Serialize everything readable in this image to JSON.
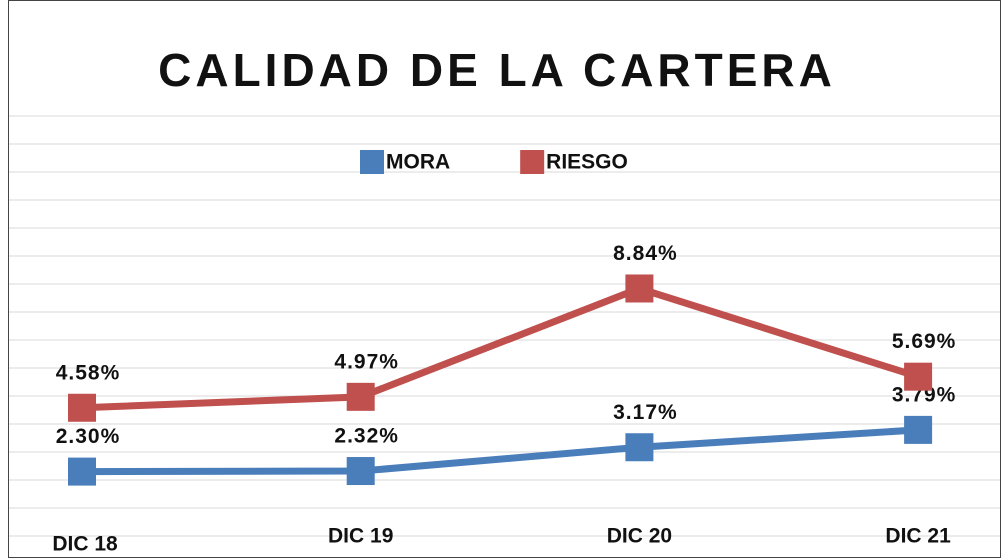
{
  "chart_data": {
    "type": "line",
    "title": "CALIDAD DE LA CARTERA",
    "categories": [
      "DIC 18",
      "DIC 19",
      "DIC 20",
      "DIC 21"
    ],
    "series": [
      {
        "name": "MORA",
        "color": "#4a7ebb",
        "values": [
          2.3,
          2.32,
          3.17,
          3.79
        ],
        "value_labels": [
          "2.30%",
          "2.32%",
          "3.17%",
          "3.79%"
        ]
      },
      {
        "name": "RIESGO",
        "color": "#c0504d",
        "values": [
          4.58,
          4.97,
          8.84,
          5.69
        ],
        "value_labels": [
          "4.58%",
          "4.97%",
          "8.84%",
          "5.69%"
        ]
      }
    ],
    "ylim": [
      0,
      15
    ],
    "yticks": [
      0,
      1,
      2,
      3,
      4,
      5,
      6,
      7,
      8,
      9,
      10,
      11,
      12,
      13,
      14,
      15
    ],
    "grid": true,
    "legend": "top"
  }
}
